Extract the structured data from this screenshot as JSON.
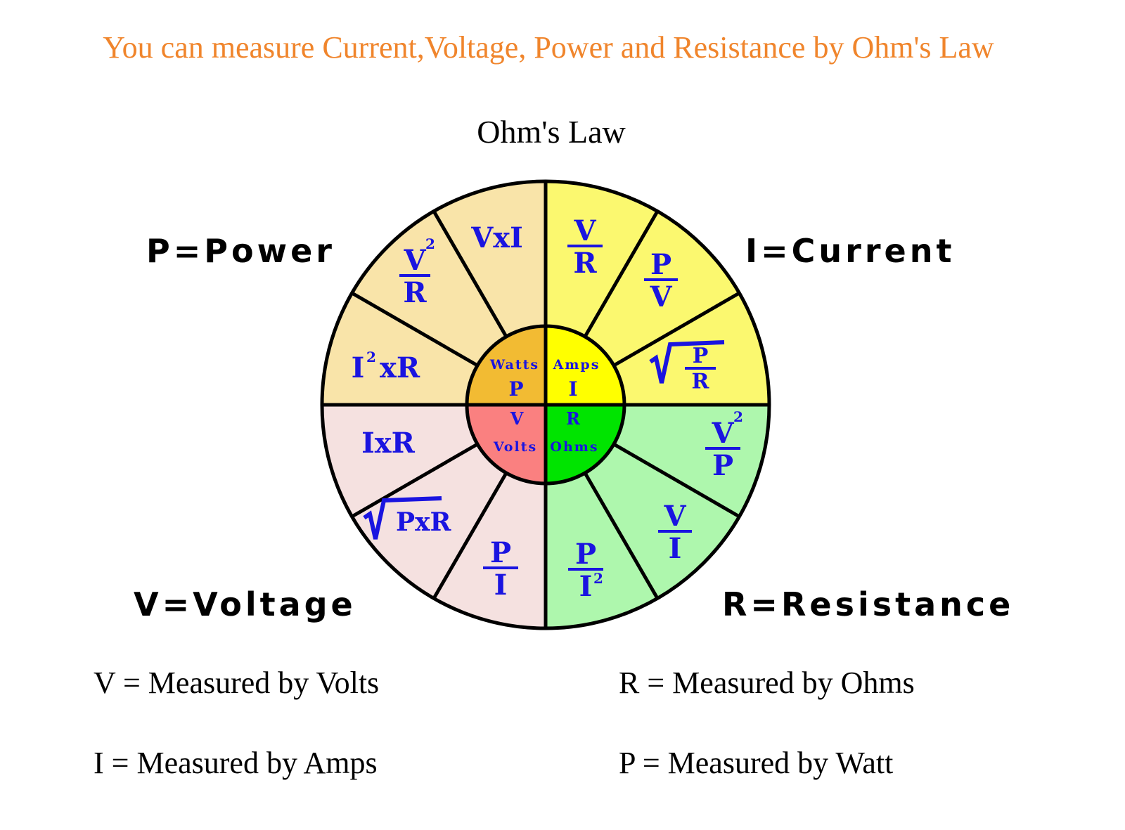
{
  "title": "You can measure Current,Voltage, Power and Resistance by Ohm's Law",
  "diagram_title": "Ohm's Law",
  "colors": {
    "title": "#f0852c",
    "formula_text": "#1a14e0",
    "power_outer": "#f9e4a9",
    "current_outer": "#fbf86f",
    "resistance_outer": "#aef7ad",
    "voltage_outer": "#f5e1e0",
    "power_inner": "#f2bb33",
    "current_inner": "#ffff00",
    "resistance_inner": "#00e400",
    "voltage_inner": "#fa8080"
  },
  "quadrant_labels": {
    "power": "P=Power",
    "current": "I=Current",
    "voltage": "V=Voltage",
    "resistance": "R=Resistance"
  },
  "inner": {
    "power": {
      "unit": "Watts",
      "symbol": "P"
    },
    "current": {
      "unit": "Amps",
      "symbol": "I"
    },
    "voltage": {
      "symbol": "V",
      "unit": "Volts"
    },
    "resistance": {
      "symbol": "R",
      "unit": "Ohms"
    }
  },
  "formulas": {
    "p_vxi": {
      "text": "VxI"
    },
    "p_v2r": {
      "num": "V",
      "num_sup": "2",
      "den": "R"
    },
    "p_i2r": {
      "base": "I",
      "sup": "2",
      "rest": "xR"
    },
    "i_vr": {
      "num": "V",
      "den": "R"
    },
    "i_pv": {
      "num": "P",
      "den": "V"
    },
    "i_sqrt_pr": {
      "num": "P",
      "den": "R"
    },
    "r_v2p": {
      "num": "V",
      "num_sup": "2",
      "den": "P"
    },
    "r_vi": {
      "num": "V",
      "den": "I"
    },
    "r_pi2": {
      "num": "P",
      "den": "I",
      "den_sup": "2"
    },
    "v_pi": {
      "num": "P",
      "den": "I"
    },
    "v_sqrt_pxr": {
      "text": "PxR"
    },
    "v_ixr": {
      "text": "IxR"
    }
  },
  "definitions": {
    "v": "V = Measured by Volts",
    "r": "R = Measured by Ohms",
    "i": "I = Measured by Amps",
    "p": "P = Measured by Watt"
  }
}
